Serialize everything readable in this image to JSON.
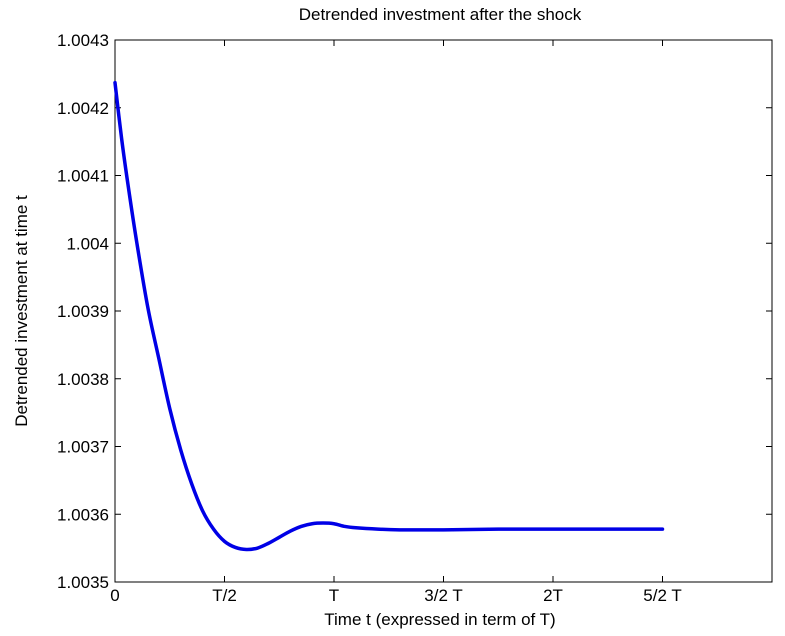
{
  "chart_data": {
    "type": "line",
    "title": "Detrended investment after the shock",
    "xlabel": "Time t (expressed in term of T)",
    "ylabel": "Detrended investment at time t",
    "xlim": [
      0,
      3
    ],
    "ylim": [
      1.0035,
      1.0043
    ],
    "x_ticks": [
      {
        "value": 0,
        "label": "0"
      },
      {
        "value": 0.5,
        "label": "T/2"
      },
      {
        "value": 1,
        "label": "T"
      },
      {
        "value": 1.5,
        "label": "3/2 T"
      },
      {
        "value": 2,
        "label": "2T"
      },
      {
        "value": 2.5,
        "label": "5/2 T"
      }
    ],
    "y_ticks": [
      {
        "value": 1.0035,
        "label": "1.0035"
      },
      {
        "value": 1.0036,
        "label": "1.0036"
      },
      {
        "value": 1.0037,
        "label": "1.0037"
      },
      {
        "value": 1.0038,
        "label": "1.0038"
      },
      {
        "value": 1.0039,
        "label": "1.0039"
      },
      {
        "value": 1.004,
        "label": "1.004"
      },
      {
        "value": 1.0041,
        "label": "1.0041"
      },
      {
        "value": 1.0042,
        "label": "1.0042"
      },
      {
        "value": 1.0043,
        "label": "1.0043"
      }
    ],
    "grid": false,
    "series": [
      {
        "color": "#0000e6",
        "x": [
          0,
          0.03,
          0.06,
          0.1,
          0.15,
          0.2,
          0.25,
          0.3,
          0.35,
          0.4,
          0.45,
          0.5,
          0.55,
          0.6,
          0.65,
          0.7,
          0.75,
          0.8,
          0.85,
          0.9,
          0.95,
          1.0,
          1.05,
          1.1,
          1.2,
          1.3,
          1.5,
          1.75,
          2.0,
          2.25,
          2.5
        ],
        "y": [
          1.004237,
          1.004155,
          1.004085,
          1.004,
          1.003905,
          1.00383,
          1.003756,
          1.003695,
          1.003645,
          1.003605,
          1.003578,
          1.00356,
          1.003551,
          1.003548,
          1.00355,
          1.003557,
          1.003566,
          1.003575,
          1.003582,
          1.003586,
          1.003587,
          1.003586,
          1.003582,
          1.00358,
          1.003578,
          1.003577,
          1.003577,
          1.003578,
          1.003578,
          1.003578,
          1.003578
        ]
      }
    ]
  }
}
